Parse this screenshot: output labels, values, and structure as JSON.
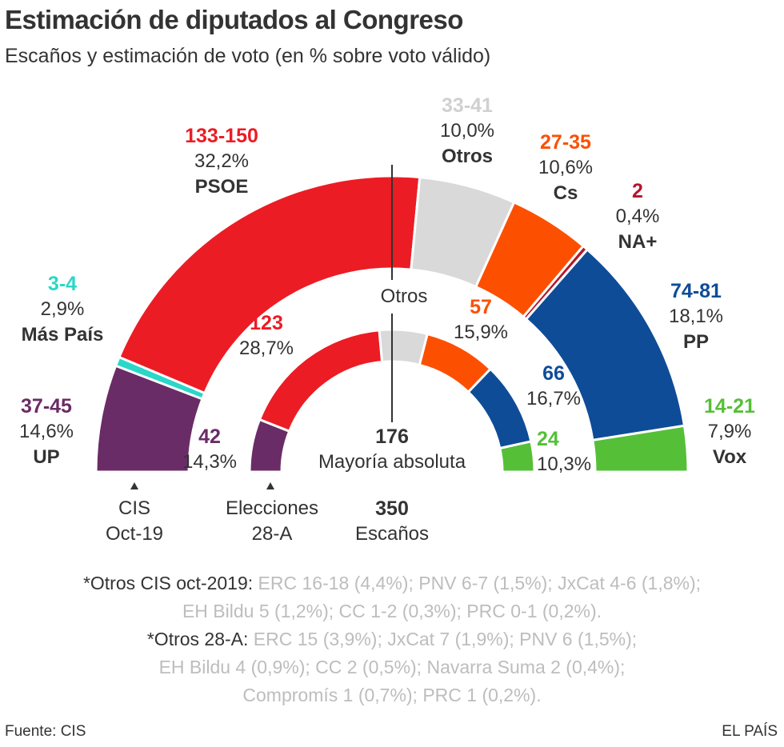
{
  "title": "Estimación de diputados al Congreso",
  "subtitle": "Escaños y estimación de voto (en % sobre voto válido)",
  "chart_data": {
    "type": "pie",
    "variant": "semicircle-parliament",
    "total_seats": "350",
    "total_label": "Escaños",
    "majority": "176",
    "majority_label": "Mayoría absoluta",
    "otros_marker_label": "Otros",
    "series": [
      {
        "name": "CIS Oct-19",
        "label_line1": "CIS",
        "label_line2": "Oct-19",
        "ring": "outer",
        "segments": [
          {
            "party": "UP",
            "seats": "37-45",
            "pct": "14,6%",
            "value": 41,
            "color": "#6a2c66"
          },
          {
            "party": "Más País",
            "seats": "3-4",
            "pct": "2,9%",
            "value": 3.5,
            "color": "#2bd7c8"
          },
          {
            "party": "PSOE",
            "seats": "133-150",
            "pct": "32,2%",
            "value": 141.5,
            "color": "#ec1c24"
          },
          {
            "party": "Otros",
            "seats": "33-41",
            "pct": "10,0%",
            "value": 37,
            "color": "#d9d9d9"
          },
          {
            "party": "Cs",
            "seats": "27-35",
            "pct": "10,6%",
            "value": 31,
            "color": "#fc5000"
          },
          {
            "party": "NA+",
            "seats": "2",
            "pct": "0,4%",
            "value": 2,
            "color": "#b5162b"
          },
          {
            "party": "PP",
            "seats": "74-81",
            "pct": "18,1%",
            "value": 77.5,
            "color": "#0f4c97"
          },
          {
            "party": "Vox",
            "seats": "14-21",
            "pct": "7,9%",
            "value": 17.5,
            "color": "#56bf38"
          }
        ]
      },
      {
        "name": "Elecciones 28-A",
        "label_line1": "Elecciones",
        "label_line2": "28-A",
        "ring": "inner",
        "segments": [
          {
            "party": "UP",
            "seats": "42",
            "pct": "14,3%",
            "value": 42,
            "color": "#6a2c66"
          },
          {
            "party": "PSOE",
            "seats": "123",
            "pct": "28,7%",
            "value": 123,
            "color": "#ec1c24"
          },
          {
            "party": "Otros",
            "seats": "",
            "pct": "",
            "value": 38,
            "color": "#d9d9d9"
          },
          {
            "party": "Cs",
            "seats": "57",
            "pct": "15,9%",
            "value": 57,
            "color": "#fc5000"
          },
          {
            "party": "PP",
            "seats": "66",
            "pct": "16,7%",
            "value": 66,
            "color": "#0f4c97"
          },
          {
            "party": "Vox",
            "seats": "24",
            "pct": "10,3%",
            "value": 24,
            "color": "#56bf38"
          }
        ]
      }
    ]
  },
  "notes": {
    "cis_key": "*Otros CIS oct-2019:",
    "cis_line1": "ERC 16-18 (4,4%); PNV 6-7 (1,5%); JxCat 4-6 (1,8%);",
    "cis_line2": "EH Bildu 5 (1,2%); CC 1-2 (0,3%); PRC 0-1 (0,2%).",
    "e28_key": "*Otros 28-A:",
    "e28_line1": "ERC 15 (3,9%); JxCat 7 (1,9%); PNV 6 (1,5%);",
    "e28_line2": "EH Bildu 4 (0,9%); CC 2 (0,5%); Navarra Suma 2 (0,4%);",
    "e28_line3": "Compromís 1 (0,7%); PRC 1 (0,2%)."
  },
  "footer": {
    "source": "Fuente: CIS",
    "brand": "EL PAÍS"
  }
}
